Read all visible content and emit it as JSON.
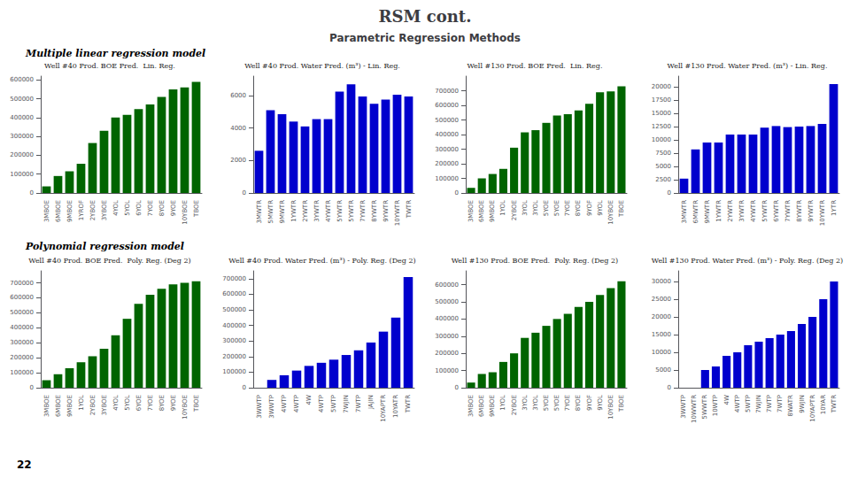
{
  "title": "RSM cont.",
  "subtitle": "Parametric Regression Methods",
  "annotations": [
    "Multiple linear regression model",
    "Polynomial regression model",
    "22"
  ],
  "chart_data": [
    {
      "type": "bar",
      "title": "Well #40 Prod. BOE Pred.  Lin. Reg.",
      "color": "#006400",
      "categories": [
        "3MBOE",
        "6MBOE",
        "9MBOE",
        "1YROF",
        "2YBOE",
        "3YBOE",
        "4YOL",
        "5YOL",
        "6YOL",
        "7YOE",
        "8YOE",
        "9YOE",
        "10YBOE",
        "TBOE"
      ],
      "values": [
        35000,
        90000,
        115000,
        155000,
        265000,
        330000,
        400000,
        415000,
        445000,
        470000,
        510000,
        550000,
        560000,
        590000
      ],
      "ylim": [
        0,
        620000
      ],
      "yticks": [
        0,
        100000,
        200000,
        300000,
        400000,
        500000,
        600000
      ],
      "grid": false
    },
    {
      "type": "bar",
      "title": "Well #40 Prod. Water Pred. (m³) - Lin. Reg.",
      "color": "#0000CD",
      "categories": [
        "3MWTR",
        "5MWTR",
        "9MWTR",
        "1YWTR",
        "2YWTR",
        "3YWTR",
        "4YWTR",
        "5YWTR",
        "5YWTR",
        "7YWTR",
        "8YWTR",
        "9YWTR",
        "10YWTR",
        "TWTR"
      ],
      "values": [
        2600,
        5100,
        4850,
        4400,
        4100,
        4550,
        4550,
        6250,
        6700,
        5950,
        5500,
        5750,
        6050,
        5950
      ],
      "ylim": [
        0,
        7200
      ],
      "yticks": [
        0,
        2000,
        4000,
        6000
      ],
      "grid": false
    },
    {
      "type": "bar",
      "title": "Well #130 Prod. BOE Pred.  Lin. Reg.",
      "color": "#006400",
      "categories": [
        "3MBOE",
        "6MBOE",
        "9MBOE",
        "1YOL",
        "2YBOE",
        "3YOL",
        "3YOL",
        "5YOE",
        "5YOE",
        "7YOE",
        "8YOE",
        "9YOF",
        "9YOL",
        "10YBOE",
        "TBOE"
      ],
      "values": [
        35000,
        100000,
        130000,
        165000,
        310000,
        415000,
        430000,
        480000,
        530000,
        540000,
        565000,
        610000,
        690000,
        695000,
        730000
      ],
      "ylim": [
        0,
        800000
      ],
      "yticks": [
        0,
        100000,
        200000,
        300000,
        400000,
        500000,
        600000,
        700000
      ],
      "grid": false
    },
    {
      "type": "bar",
      "title": "Well #130 Prod. Water Pred. (m³) - Lin. Reg.",
      "color": "#0000CD",
      "categories": [
        "3MWTR",
        "6MWTR",
        "9MWTR",
        "1YWTR",
        "2YWTR",
        "3YWTR",
        "4YWTR",
        "5YWTR",
        "6YWTR",
        "7YWTR",
        "8YWTR",
        "9YWTR",
        "10YWTR",
        "1YTR"
      ],
      "values": [
        2700,
        8200,
        9500,
        9500,
        11000,
        11000,
        11000,
        12300,
        12600,
        12400,
        12500,
        12600,
        13000,
        20500
      ],
      "ylim": [
        0,
        22000
      ],
      "yticks": [
        0,
        2500,
        5000,
        7500,
        10000,
        12500,
        15000,
        17500,
        20000
      ],
      "grid": false
    },
    {
      "type": "bar",
      "title": "Well #40 Prod. BOE Pred.  Poly. Reg. (Deg 2)",
      "color": "#006400",
      "categories": [
        "3MBOE",
        "6MBOE",
        "9MBOE",
        "1YOL",
        "2YBOE",
        "3YBOE",
        "4YOL",
        "5YOL",
        "6YOE",
        "7YOE",
        "8YOE",
        "9YOE",
        "10YBOE",
        "TBOE"
      ],
      "values": [
        50000,
        90000,
        130000,
        170000,
        210000,
        260000,
        350000,
        460000,
        560000,
        620000,
        660000,
        690000,
        700000,
        710000
      ],
      "ylim": [
        0,
        780000
      ],
      "yticks": [
        0,
        100000,
        200000,
        300000,
        400000,
        500000,
        600000,
        700000
      ],
      "grid": false
    },
    {
      "type": "bar",
      "title": "Well #40 Prod. Water Pred. (m³) - Poly. Reg. (Deg 2)",
      "color": "#0000CD",
      "categories": [
        "3WWTP",
        "3WWTP",
        "4WTP",
        "4WTP",
        "4W",
        "4WTP",
        "5WTP",
        "7WJIN",
        "7WTP",
        "JAJIN",
        "10YAPTR",
        "10YATR",
        "TWTR"
      ],
      "values": [
        0,
        50000,
        80000,
        110000,
        140000,
        160000,
        180000,
        210000,
        240000,
        290000,
        360000,
        450000,
        710000
      ],
      "ylim": [
        0,
        750000
      ],
      "yticks": [
        0,
        100000,
        200000,
        300000,
        400000,
        500000,
        600000,
        700000
      ],
      "grid": false
    },
    {
      "type": "bar",
      "title": "Well #130 Prod. BOE Pred.  Poly. Reg. (Deg 2)",
      "color": "#006400",
      "categories": [
        "3MBOE",
        "6MBOE",
        "9MBOE",
        "1YOL",
        "2YBOE",
        "3YOL",
        "3YOL",
        "5YOE",
        "5YOE",
        "7YOE",
        "8YOE",
        "9YOF",
        "9YOL",
        "10YBOE",
        "TBOE"
      ],
      "values": [
        30000,
        80000,
        90000,
        150000,
        200000,
        290000,
        320000,
        360000,
        400000,
        430000,
        470000,
        500000,
        540000,
        580000,
        620000
      ],
      "ylim": [
        0,
        680000
      ],
      "yticks": [
        0,
        100000,
        200000,
        300000,
        400000,
        500000,
        600000
      ],
      "grid": false
    },
    {
      "type": "bar",
      "title": "Well #130 Prod. Water Pred. (m³) - Poly. Reg. (Deg 2)",
      "color": "#0000CD",
      "categories": [
        "3WWTP",
        "10WWTR",
        "5WWTR",
        "10WTP",
        "4W",
        "4WTP",
        "5WTP",
        "7WJIN",
        "7WTP",
        "7WTP",
        "8WATR",
        "9WJIN",
        "10YAPTR",
        "10YAR",
        "TWTR"
      ],
      "values": [
        0,
        0,
        5000,
        6000,
        9000,
        10000,
        12000,
        13000,
        14000,
        15000,
        16000,
        18000,
        20000,
        25000,
        30000
      ],
      "ylim": [
        0,
        33000
      ],
      "yticks": [
        0,
        5000,
        10000,
        15000,
        20000,
        25000,
        30000
      ],
      "grid": false
    }
  ]
}
